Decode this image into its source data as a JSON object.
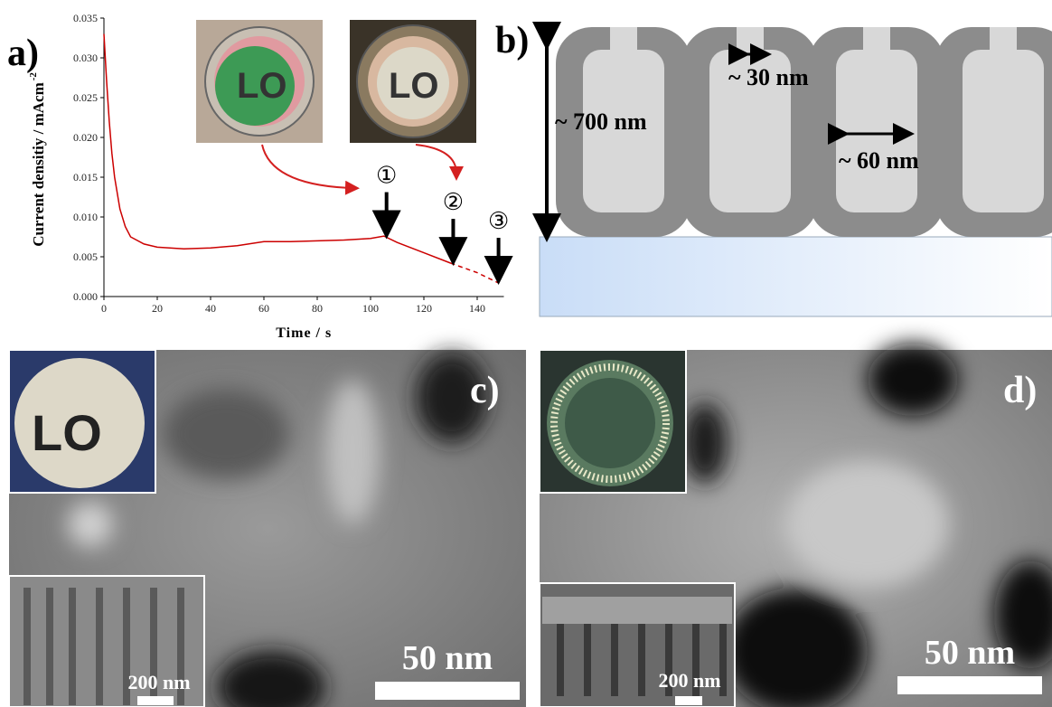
{
  "chart_data": {
    "type": "line",
    "xlabel": "Time / s",
    "ylabel": "Current densitiy / mAcm",
    "ylabel_superscript": "-2",
    "xlim": [
      0,
      150
    ],
    "xticks": [
      0,
      20,
      40,
      60,
      80,
      100,
      120,
      140
    ],
    "ylim": [
      0,
      0.035
    ],
    "yticks": [
      {
        "value": 0,
        "label": "0.000"
      },
      {
        "value": 0.005,
        "label": "0.005"
      },
      {
        "value": 0.01,
        "label": "0.010"
      },
      {
        "value": 0.015,
        "label": "0.015"
      },
      {
        "value": 0.02,
        "label": "0.020"
      },
      {
        "value": 0.025,
        "label": "0.025"
      },
      {
        "value": 0.03,
        "label": "0.030"
      },
      {
        "value": 0.035,
        "label": "0.035"
      }
    ],
    "series": [
      {
        "color": "#cc0000",
        "line_style": "solid",
        "x": [
          0,
          1,
          2,
          3,
          4,
          6,
          8,
          10,
          15,
          20,
          30,
          40,
          50,
          60,
          70,
          80,
          90,
          100,
          105,
          110,
          120,
          130
        ],
        "values": [
          0.033,
          0.027,
          0.022,
          0.018,
          0.015,
          0.011,
          0.0088,
          0.0075,
          0.0066,
          0.0062,
          0.006,
          0.0061,
          0.0064,
          0.0069,
          0.0069,
          0.007,
          0.0071,
          0.0073,
          0.0076,
          0.0068,
          0.0055,
          0.0042
        ]
      },
      {
        "color": "#cc0000",
        "line_style": "dashed",
        "x": [
          130,
          140,
          148
        ],
        "values": [
          0.0042,
          0.003,
          0.0017
        ]
      }
    ],
    "annotations": [
      {
        "text": "①",
        "x": 106
      },
      {
        "text": "②",
        "x": 131
      },
      {
        "text": "③",
        "x": 148
      }
    ]
  },
  "panels": {
    "a": "a)",
    "b": "b)",
    "c": "c)",
    "d": "d)"
  },
  "diagram": {
    "height": "~ 700 nm",
    "neck": "~ 30 nm",
    "width": "~ 60 nm"
  },
  "sem_c": {
    "scale": "50 nm",
    "inset_scale": "200 nm"
  },
  "sem_d": {
    "scale": "50 nm",
    "inset_scale": "200 nm"
  }
}
